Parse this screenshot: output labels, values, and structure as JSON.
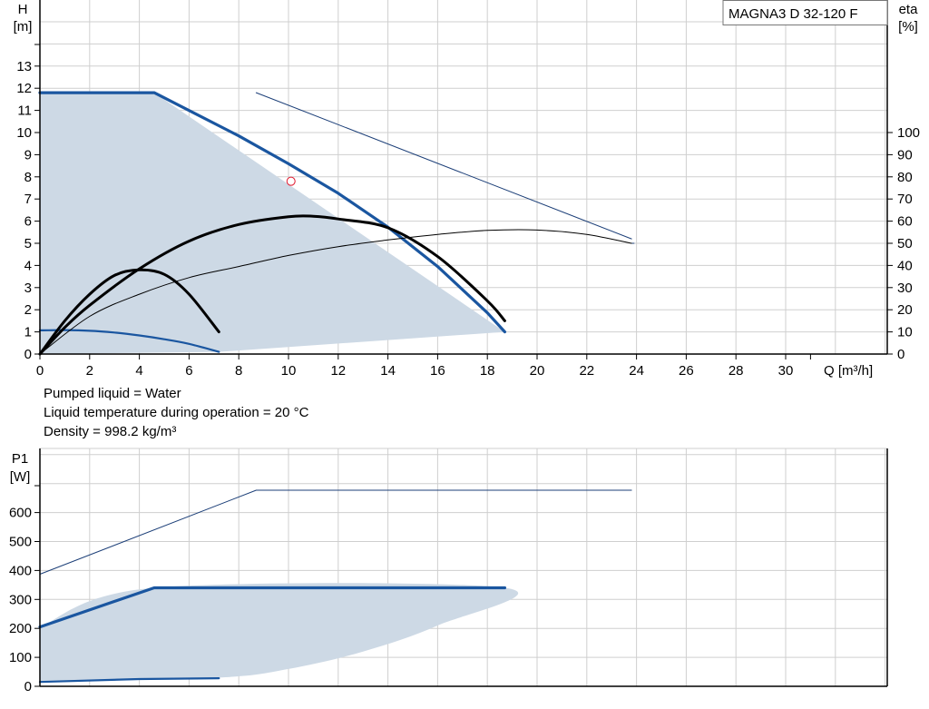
{
  "info_lines": [
    "Pumped liquid = Water",
    "Liquid temperature during operation = 20 °C",
    "Density = 998.2 kg/m³"
  ],
  "chart_data": [
    {
      "type": "line",
      "id": "head",
      "model_label": "MAGNA3 D 32-120 F",
      "x_label": "Q [m³/h]",
      "y_label": "H",
      "y_unit": "[m]",
      "y2_label": "eta",
      "y2_unit": "[%]",
      "xlim": [
        0,
        34
      ],
      "ylim": [
        0,
        15.2
      ],
      "y2lim": [
        0,
        152
      ],
      "x_ticks": [
        0,
        2,
        4,
        6,
        8,
        10,
        12,
        14,
        16,
        18,
        20,
        22,
        24,
        26,
        28,
        30
      ],
      "y_ticks": [
        0,
        1,
        2,
        3,
        4,
        5,
        6,
        7,
        8,
        9,
        10,
        11,
        12,
        13
      ],
      "y2_ticks": [
        0,
        10,
        20,
        30,
        40,
        50,
        60,
        70,
        80,
        90,
        100
      ],
      "grid": true,
      "operating_area": [
        [
          0,
          11.8
        ],
        [
          4.6,
          11.8
        ],
        [
          18.7,
          1.0
        ],
        [
          7.2,
          0.1
        ],
        [
          0,
          0
        ]
      ],
      "series": [
        {
          "axis": "H",
          "style": "thin",
          "values": [
            [
              8.7,
              11.8
            ],
            [
              23.8,
              5.2
            ]
          ]
        },
        {
          "axis": "H",
          "style": "thin",
          "values": [
            [
              23.8,
              5.0
            ],
            [
              23.9,
              5.0
            ]
          ]
        },
        {
          "axis": "H",
          "style": "max",
          "values": [
            [
              0,
              11.8
            ],
            [
              4.6,
              11.8
            ],
            [
              8,
              9.85
            ],
            [
              10,
              8.59
            ],
            [
              12,
              7.26
            ],
            [
              14,
              5.73
            ],
            [
              16,
              3.95
            ],
            [
              18,
              1.86
            ],
            [
              18.7,
              1.0
            ]
          ]
        },
        {
          "axis": "H",
          "style": "min",
          "values": [
            [
              0,
              1.07
            ],
            [
              1,
              1.08
            ],
            [
              2,
              1.05
            ],
            [
              3,
              0.97
            ],
            [
              4,
              0.84
            ],
            [
              5,
              0.67
            ],
            [
              6,
              0.46
            ],
            [
              7.2,
              0.1
            ]
          ]
        },
        {
          "axis": "eta",
          "style": "eta-thin",
          "values": [
            [
              0,
              0
            ],
            [
              2,
              17
            ],
            [
              4,
              27
            ],
            [
              6,
              34.5
            ],
            [
              8,
              39.5
            ],
            [
              10,
              44.5
            ],
            [
              12,
              48.5
            ],
            [
              14,
              51.5
            ],
            [
              16,
              54
            ],
            [
              18,
              55.8
            ],
            [
              20,
              56
            ],
            [
              22,
              54
            ],
            [
              23.8,
              50
            ]
          ]
        },
        {
          "axis": "eta",
          "style": "eta-bold",
          "values": [
            [
              0,
              0
            ],
            [
              1,
              12
            ],
            [
              2,
              22
            ],
            [
              4,
              38.5
            ],
            [
              6,
              51
            ],
            [
              8,
              58.5
            ],
            [
              10,
              62
            ],
            [
              11,
              62.2
            ],
            [
              12,
              61
            ],
            [
              14,
              57
            ],
            [
              16,
              44
            ],
            [
              18,
              24
            ],
            [
              18.7,
              15
            ]
          ]
        },
        {
          "axis": "eta",
          "style": "eta-bold",
          "values": [
            [
              0,
              0
            ],
            [
              1,
              15
            ],
            [
              2,
              27
            ],
            [
              3,
              35.5
            ],
            [
              4,
              38
            ],
            [
              5,
              36
            ],
            [
              6,
              27
            ],
            [
              7.2,
              10
            ]
          ]
        }
      ],
      "duty_point": {
        "q": 10.1,
        "h": 7.8
      }
    },
    {
      "type": "line",
      "id": "power",
      "y_label": "P1",
      "y_unit": "[W]",
      "xlim": [
        0,
        34
      ],
      "ylim": [
        0,
        800
      ],
      "y_ticks": [
        0,
        100,
        200,
        300,
        400,
        500,
        600
      ],
      "grid": true,
      "operating_area": [
        [
          0,
          205
        ],
        [
          4.6,
          340
        ],
        [
          18.7,
          340
        ],
        [
          16,
          210
        ],
        [
          13,
          120
        ],
        [
          10,
          60
        ],
        [
          7.2,
          30
        ],
        [
          0,
          15
        ]
      ],
      "series": [
        {
          "style": "thin",
          "values": [
            [
              0,
              387
            ],
            [
              8.7,
              677
            ],
            [
              23.8,
              677
            ]
          ]
        },
        {
          "style": "max",
          "values": [
            [
              0,
              205
            ],
            [
              4.6,
              340
            ],
            [
              18.7,
              340
            ]
          ]
        },
        {
          "style": "min",
          "values": [
            [
              0,
              15
            ],
            [
              4,
              25
            ],
            [
              7.2,
              28
            ]
          ]
        }
      ]
    }
  ]
}
